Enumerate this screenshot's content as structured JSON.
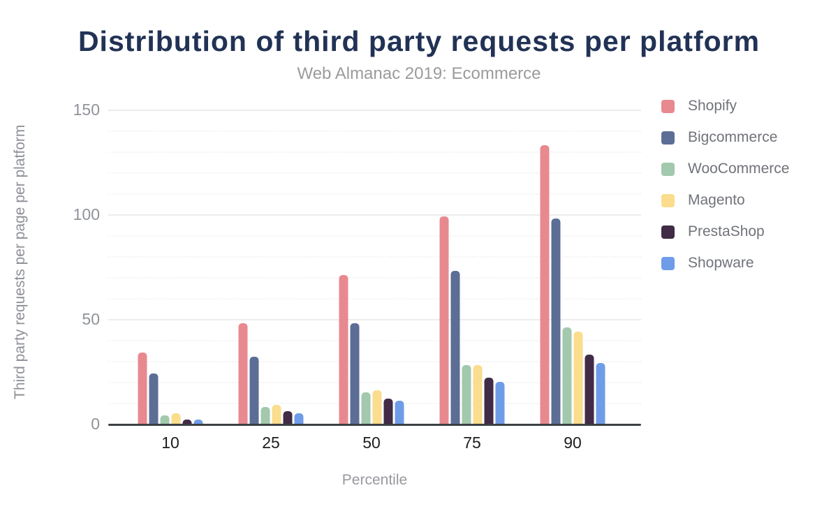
{
  "chart_data": {
    "type": "bar",
    "title": "Distribution of third party requests per platform",
    "subtitle": "Web Almanac 2019: Ecommerce",
    "xlabel": "Percentile",
    "ylabel": "Third party requests per page per platform",
    "categories": [
      "10",
      "25",
      "50",
      "75",
      "90"
    ],
    "series": [
      {
        "name": "Shopify",
        "color": "#e8898f",
        "values": [
          34,
          48,
          71,
          99,
          133
        ]
      },
      {
        "name": "Bigcommerce",
        "color": "#5c6e96",
        "values": [
          24,
          32,
          48,
          73,
          98
        ]
      },
      {
        "name": "WooCommerce",
        "color": "#a2c8ad",
        "values": [
          4,
          8,
          15,
          28,
          46
        ]
      },
      {
        "name": "Magento",
        "color": "#fadd8d",
        "values": [
          5,
          9,
          16,
          28,
          44
        ]
      },
      {
        "name": "PrestaShop",
        "color": "#412b46",
        "values": [
          2,
          6,
          12,
          22,
          33
        ]
      },
      {
        "name": "Shopware",
        "color": "#6f9ce8",
        "values": [
          2,
          5,
          11,
          20,
          29
        ]
      }
    ],
    "ylim": [
      0,
      150
    ],
    "yticks": [
      0,
      50,
      100,
      150
    ],
    "minor_tick_step": 10,
    "grid": true,
    "legend_position": "right",
    "colors": {
      "title": "#213255",
      "subtitle": "#9b9b9b",
      "axis_line": "#3c4043",
      "y_tick_text": "#8f939a",
      "x_tick_text": "#1d1d1f",
      "gridline_major": "#ececec",
      "gridline_minor": "#f3f3f3",
      "background": "#ffffff"
    }
  }
}
